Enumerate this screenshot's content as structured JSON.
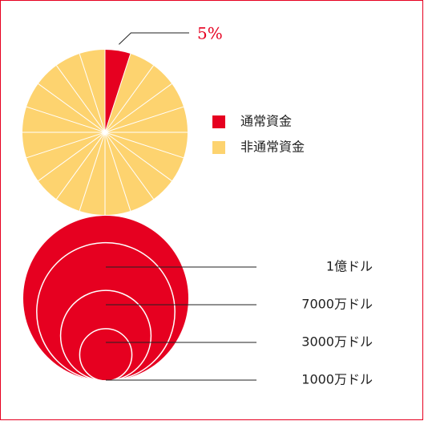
{
  "chart_data": [
    {
      "type": "pie",
      "categories": [
        "通常資金",
        "非通常資金"
      ],
      "values": [
        5,
        95
      ],
      "value_labels": [
        "5%",
        null
      ],
      "colors": [
        "#e60020",
        "#fdd36f"
      ]
    },
    {
      "type": "circles",
      "values": [
        100000000,
        70000000,
        30000000,
        10000000
      ],
      "value_labels": [
        "1億ドル",
        "7000万ドル",
        "3000万ドル",
        "1000万ドル"
      ],
      "color": "#e60020"
    }
  ]
}
